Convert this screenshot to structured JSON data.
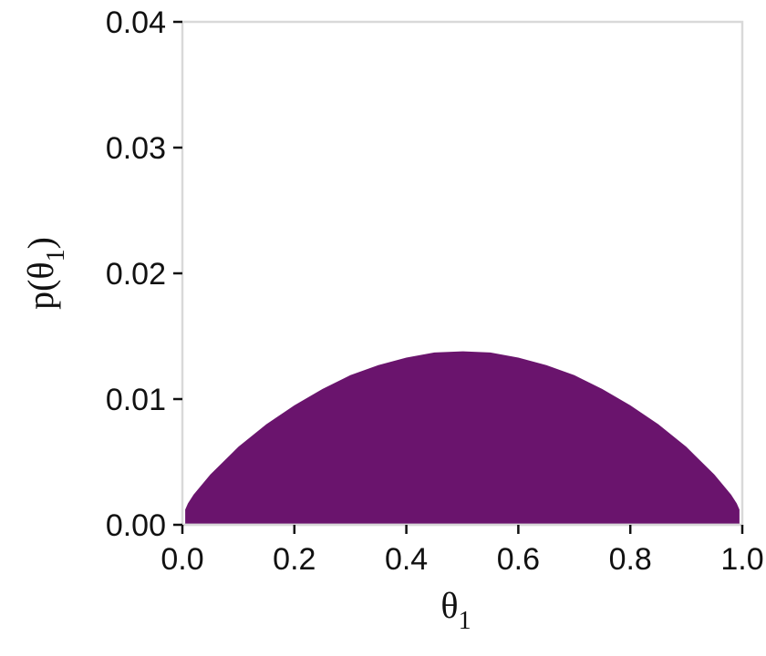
{
  "chart_data": {
    "type": "area",
    "xlabel": "θ",
    "xlabel_sub": "1",
    "ylabel_prefix": "p(θ",
    "ylabel_sub": "1",
    "ylabel_suffix": ")",
    "xlim": [
      0,
      1
    ],
    "ylim": [
      0,
      0.04
    ],
    "x_ticks": [
      0,
      0.2,
      0.4,
      0.6,
      0.8,
      1.0
    ],
    "x_tick_labels": [
      "0.0",
      "0.2",
      "0.4",
      "0.6",
      "0.8",
      "1.0"
    ],
    "y_ticks": [
      0,
      0.01,
      0.02,
      0.03,
      0.04
    ],
    "y_tick_labels": [
      "0.00",
      "0.01",
      "0.02",
      "0.03",
      "0.04"
    ],
    "grid": false,
    "fill_color": "#6a146d",
    "frame_color": "#d9d9d9",
    "series": [
      {
        "x": [
          0.005,
          0.01,
          0.02,
          0.05,
          0.1,
          0.15,
          0.2,
          0.25,
          0.3,
          0.35,
          0.4,
          0.45,
          0.5,
          0.55,
          0.6,
          0.65,
          0.7,
          0.75,
          0.8,
          0.85,
          0.9,
          0.95,
          0.98,
          0.99,
          0.995
        ],
        "y": [
          0.0012,
          0.0017,
          0.0024,
          0.004,
          0.0062,
          0.008,
          0.0095,
          0.0108,
          0.0119,
          0.0127,
          0.0133,
          0.0137,
          0.0138,
          0.0137,
          0.0133,
          0.0127,
          0.0119,
          0.0108,
          0.0095,
          0.008,
          0.0062,
          0.004,
          0.0024,
          0.0017,
          0.0012
        ]
      }
    ]
  }
}
